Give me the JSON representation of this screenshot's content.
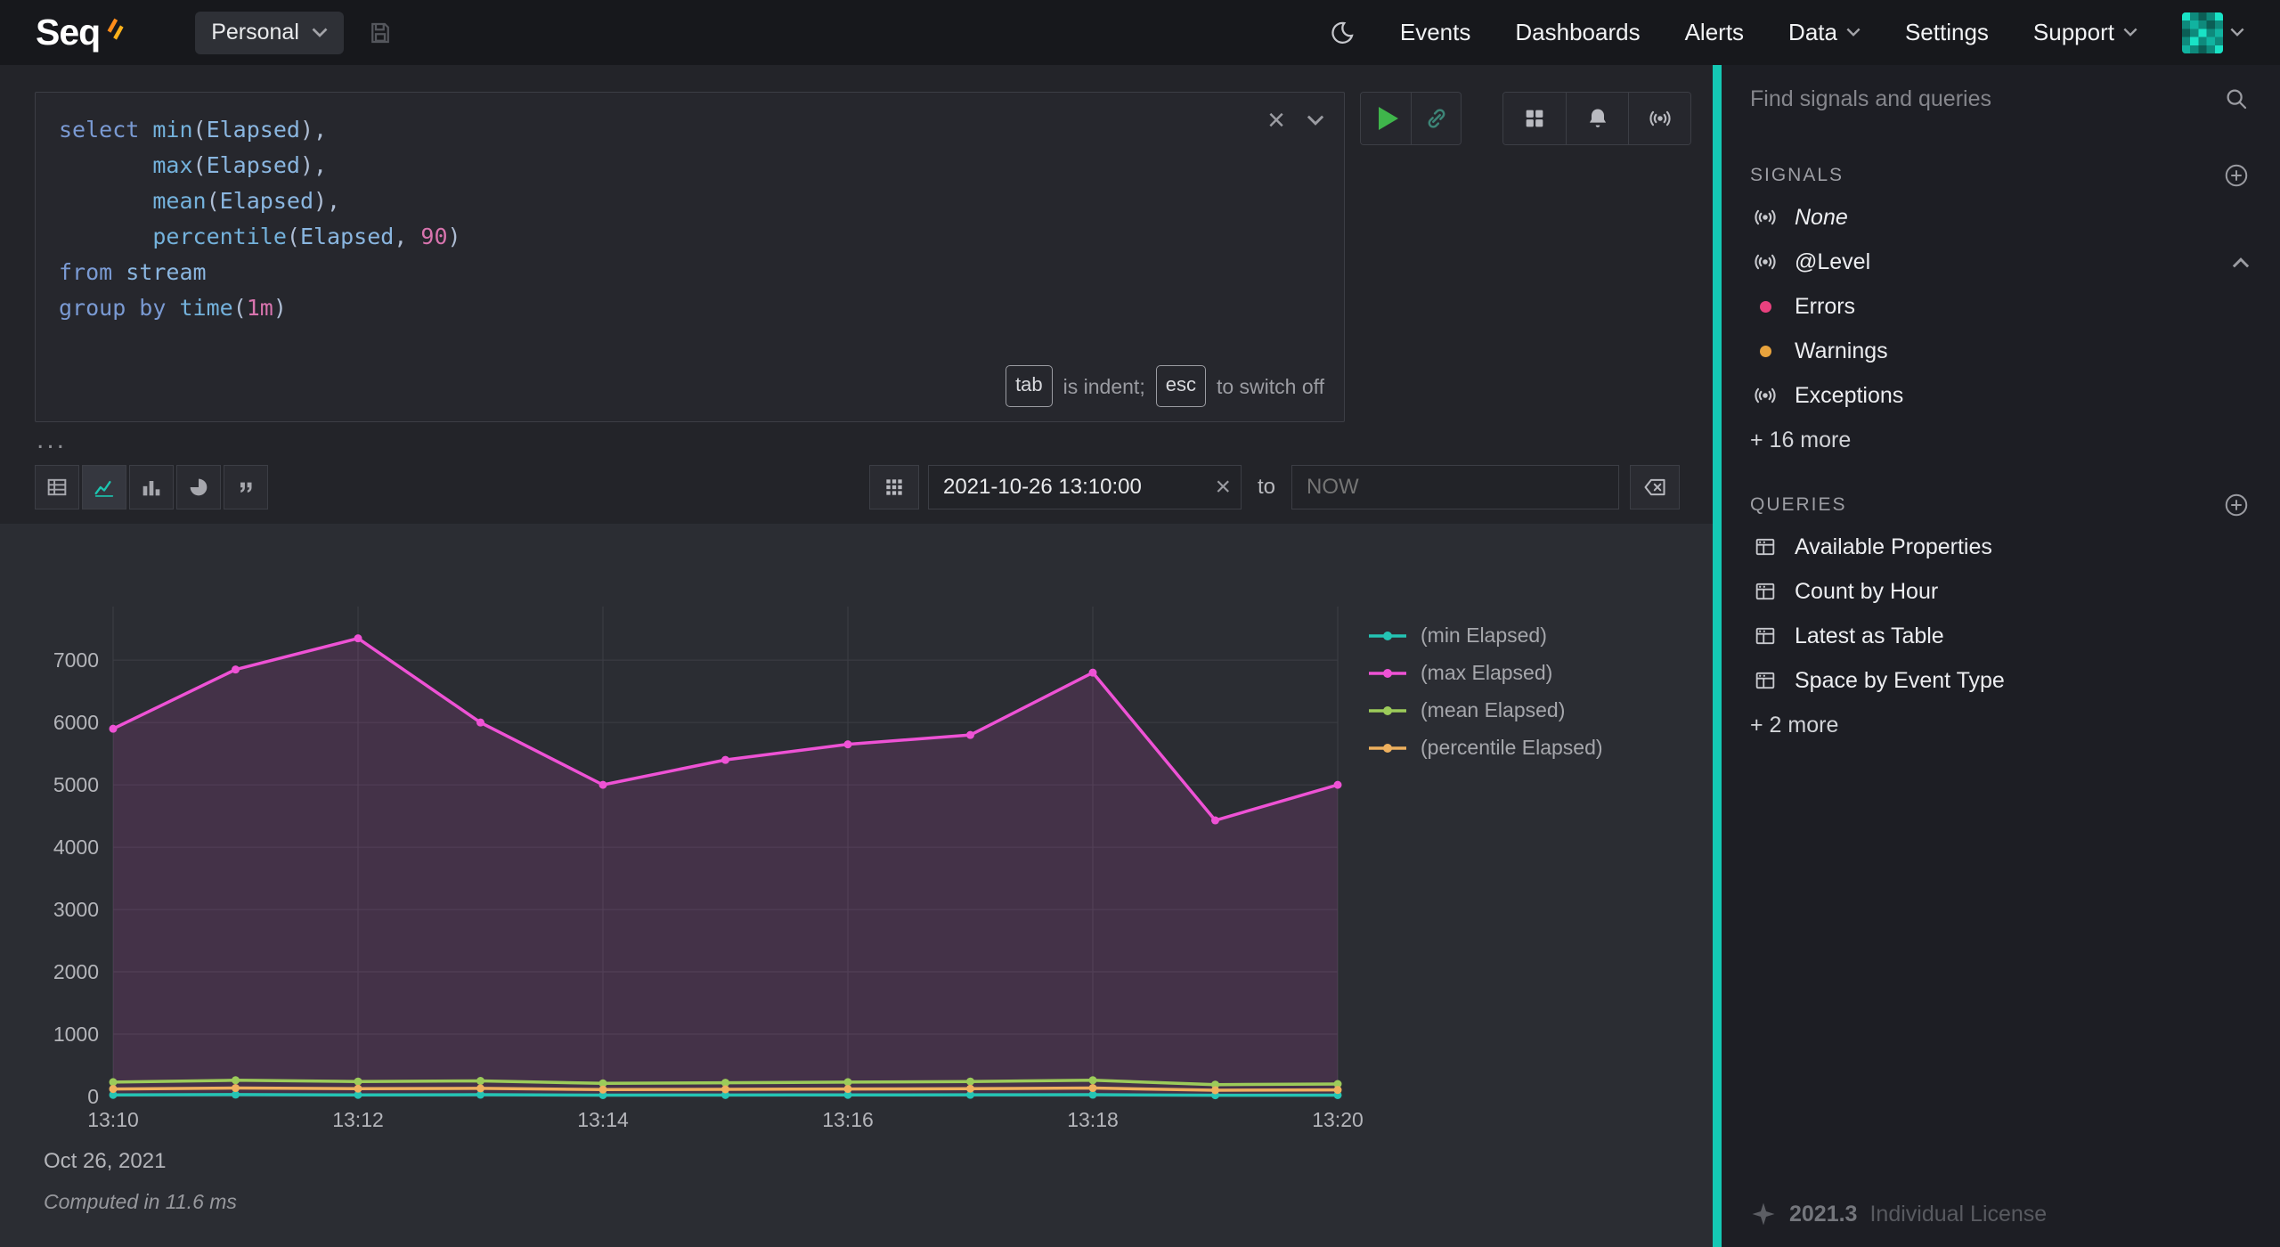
{
  "topbar": {
    "logo_text": "Seq",
    "workspace_label": "Personal",
    "nav": {
      "events": "Events",
      "dashboards": "Dashboards",
      "alerts": "Alerts",
      "data": "Data",
      "settings": "Settings",
      "support": "Support"
    }
  },
  "editor": {
    "code": [
      [
        {
          "c": "kw",
          "t": "select "
        },
        {
          "c": "fn",
          "t": "min"
        },
        {
          "c": "pun",
          "t": "("
        },
        {
          "c": "id",
          "t": "Elapsed"
        },
        {
          "c": "pun",
          "t": "),"
        }
      ],
      [
        {
          "c": "pun",
          "t": "       "
        },
        {
          "c": "fn",
          "t": "max"
        },
        {
          "c": "pun",
          "t": "("
        },
        {
          "c": "id",
          "t": "Elapsed"
        },
        {
          "c": "pun",
          "t": "),"
        }
      ],
      [
        {
          "c": "pun",
          "t": "       "
        },
        {
          "c": "fn",
          "t": "mean"
        },
        {
          "c": "pun",
          "t": "("
        },
        {
          "c": "id",
          "t": "Elapsed"
        },
        {
          "c": "pun",
          "t": "),"
        }
      ],
      [
        {
          "c": "pun",
          "t": "       "
        },
        {
          "c": "fn",
          "t": "percentile"
        },
        {
          "c": "pun",
          "t": "("
        },
        {
          "c": "id",
          "t": "Elapsed"
        },
        {
          "c": "pun",
          "t": ", "
        },
        {
          "c": "num",
          "t": "90"
        },
        {
          "c": "pun",
          "t": ")"
        }
      ],
      [
        {
          "c": "kw",
          "t": "from "
        },
        {
          "c": "id",
          "t": "stream"
        }
      ],
      [
        {
          "c": "kw",
          "t": "group by "
        },
        {
          "c": "fn",
          "t": "time"
        },
        {
          "c": "pun",
          "t": "("
        },
        {
          "c": "num",
          "t": "1m"
        },
        {
          "c": "pun",
          "t": ")"
        }
      ]
    ],
    "close_label": "×",
    "hint": {
      "tab_key": "tab",
      "tab_text": "is indent;",
      "esc_key": "esc",
      "esc_text": "to switch off"
    },
    "collapse_label": "..."
  },
  "toolbar": {
    "view_modes": [
      "table",
      "line-chart",
      "bar-chart",
      "pie-chart",
      "raw"
    ],
    "range_from": "2021-10-26 13:10:00",
    "clear_label": "×",
    "to_label": "to",
    "range_to_placeholder": "NOW"
  },
  "chart_data": {
    "type": "line",
    "x": [
      "13:10",
      "13:11",
      "13:12",
      "13:13",
      "13:14",
      "13:15",
      "13:16",
      "13:17",
      "13:18",
      "13:19",
      "13:20"
    ],
    "x_tick_every": 2,
    "y_ticks": [
      0,
      1000,
      2000,
      3000,
      4000,
      5000,
      6000,
      7000
    ],
    "ylim": [
      0,
      7860
    ],
    "grid": true,
    "legend_position": "right",
    "date_label": "Oct 26, 2021",
    "series": [
      {
        "name": "(min Elapsed)",
        "color": "#24c4b4",
        "fill": false,
        "values": [
          25,
          30,
          25,
          28,
          22,
          24,
          25,
          26,
          28,
          20,
          22
        ]
      },
      {
        "name": "(max Elapsed)",
        "color": "#ee52d5",
        "fill": true,
        "values": [
          5900,
          6850,
          7350,
          6000,
          5000,
          5400,
          5650,
          5800,
          6800,
          4430,
          5000
        ]
      },
      {
        "name": "(mean Elapsed)",
        "color": "#9ccb5a",
        "fill": false,
        "values": [
          230,
          260,
          240,
          250,
          210,
          220,
          230,
          240,
          260,
          190,
          200
        ]
      },
      {
        "name": "(percentile Elapsed)",
        "color": "#eeb05e",
        "fill": false,
        "values": [
          120,
          135,
          125,
          130,
          110,
          115,
          120,
          125,
          135,
          100,
          105
        ]
      }
    ]
  },
  "status": {
    "computed_in": "Computed in 11.6 ms"
  },
  "sidebar": {
    "search_placeholder": "Find signals and queries",
    "signals": {
      "header": "SIGNALS",
      "items": [
        {
          "label": "None",
          "icon": "signal-icon",
          "italic": true
        },
        {
          "label": "@Level",
          "icon": "signal-icon",
          "expanded": true
        },
        {
          "label": "Errors",
          "icon": "dot",
          "dot_color": "#e8417e"
        },
        {
          "label": "Warnings",
          "icon": "dot",
          "dot_color": "#e8a33d"
        },
        {
          "label": "Exceptions",
          "icon": "signal-icon"
        },
        {
          "label": "+ 16 more",
          "icon": "none"
        }
      ]
    },
    "queries": {
      "header": "QUERIES",
      "items": [
        {
          "label": "Available Properties",
          "icon": "query-icon"
        },
        {
          "label": "Count by Hour",
          "icon": "query-icon"
        },
        {
          "label": "Latest as Table",
          "icon": "query-icon"
        },
        {
          "label": "Space by Event Type",
          "icon": "query-icon"
        },
        {
          "label": "+ 2 more",
          "icon": "none"
        }
      ]
    },
    "footer": {
      "version": "2021.3",
      "license": "Individual License"
    }
  }
}
